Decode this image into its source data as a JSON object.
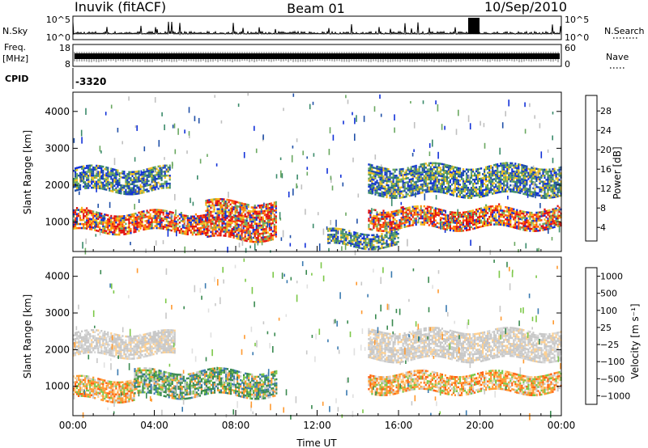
{
  "header": {
    "station": "Inuvik (fitACF)",
    "beam": "Beam 01",
    "date": "10/Sep/2010"
  },
  "panels": {
    "nsky": {
      "left_label": "N.Sky",
      "right_label": "N.Search",
      "left_ticks": [
        "10^5",
        "10^0"
      ],
      "right_ticks": [
        "10^5",
        "10^0"
      ]
    },
    "freq": {
      "left_label_top": "Freq.",
      "left_label_unit": "[MHz]",
      "right_label": "Nave",
      "left_ticks": [
        "18",
        "8"
      ],
      "right_ticks": [
        "60",
        "0"
      ]
    },
    "cpid": {
      "label": "CPID",
      "value": "-3320"
    }
  },
  "colors": {
    "power_scale": [
      "#1030d8",
      "#2050a8",
      "#3a8a6a",
      "#6aa860",
      "#f0c020",
      "#ff8c00",
      "#ff4a10",
      "#e01010"
    ],
    "velocity_scale": [
      "#2050b0",
      "#3a7ab0",
      "#3a8a50",
      "#7cc848",
      "#c8c8c8",
      "#ffd090",
      "#ff9a30",
      "#ff6010",
      "#e81818"
    ],
    "power_hot": "#ff3010",
    "velocity_grey": "#bdbdbd"
  },
  "chart_data": [
    {
      "type": "heatmap",
      "panel": "power",
      "xlabel": "Time UT",
      "ylabel": "Slant Range [km]",
      "x_tick_labels": [
        "00:00",
        "04:00",
        "08:00",
        "12:00",
        "16:00",
        "20:00",
        "00:00"
      ],
      "y_tick_labels": [
        "1000",
        "2000",
        "3000",
        "4000"
      ],
      "xlim_hours": [
        0,
        24
      ],
      "ylim_km": [
        200,
        4500
      ],
      "colorbar_label": "Power [dB]",
      "colorbar_ticks": [
        "28",
        "24",
        "20",
        "16",
        "12",
        "8",
        "4"
      ],
      "colorbar_range": [
        0,
        30
      ],
      "bands": [
        {
          "t0": 0.0,
          "t1": 4.8,
          "r0": 1800,
          "r1": 2450,
          "level": "mid"
        },
        {
          "t0": 0.0,
          "t1": 6.5,
          "r0": 700,
          "r1": 1250,
          "level": "high"
        },
        {
          "t0": 6.5,
          "t1": 10.0,
          "r0": 500,
          "r1": 1500,
          "level": "high"
        },
        {
          "t0": 14.5,
          "t1": 24.0,
          "r0": 1700,
          "r1": 2500,
          "level": "mid"
        },
        {
          "t0": 14.5,
          "t1": 24.0,
          "r0": 800,
          "r1": 1350,
          "level": "high"
        },
        {
          "t0": 12.5,
          "t1": 16.0,
          "r0": 300,
          "r1": 700,
          "level": "mid"
        }
      ]
    },
    {
      "type": "heatmap",
      "panel": "velocity",
      "xlabel": "Time UT",
      "ylabel": "Slant Range [km]",
      "x_tick_labels": [
        "00:00",
        "04:00",
        "08:00",
        "12:00",
        "16:00",
        "20:00",
        "00:00"
      ],
      "y_tick_labels": [
        "1000",
        "2000",
        "3000",
        "4000"
      ],
      "xlim_hours": [
        0,
        24
      ],
      "ylim_km": [
        200,
        4500
      ],
      "colorbar_label": "Velocity [m s⁻¹]",
      "colorbar_ticks": [
        "1000",
        "500",
        "100",
        "25",
        "−25",
        "−100",
        "−500",
        "−1000"
      ],
      "colorbar_range": [
        -1000,
        1000
      ],
      "bands": [
        {
          "t0": 0.0,
          "t1": 5.0,
          "r0": 1800,
          "r1": 2450,
          "level": "grey"
        },
        {
          "t0": 0.0,
          "t1": 3.0,
          "r0": 600,
          "r1": 1200,
          "level": "negative"
        },
        {
          "t0": 3.0,
          "t1": 10.0,
          "r0": 700,
          "r1": 1400,
          "level": "positive"
        },
        {
          "t0": 14.5,
          "t1": 24.0,
          "r0": 1700,
          "r1": 2500,
          "level": "grey"
        },
        {
          "t0": 14.5,
          "t1": 24.0,
          "r0": 800,
          "r1": 1300,
          "level": "negative"
        }
      ]
    }
  ]
}
